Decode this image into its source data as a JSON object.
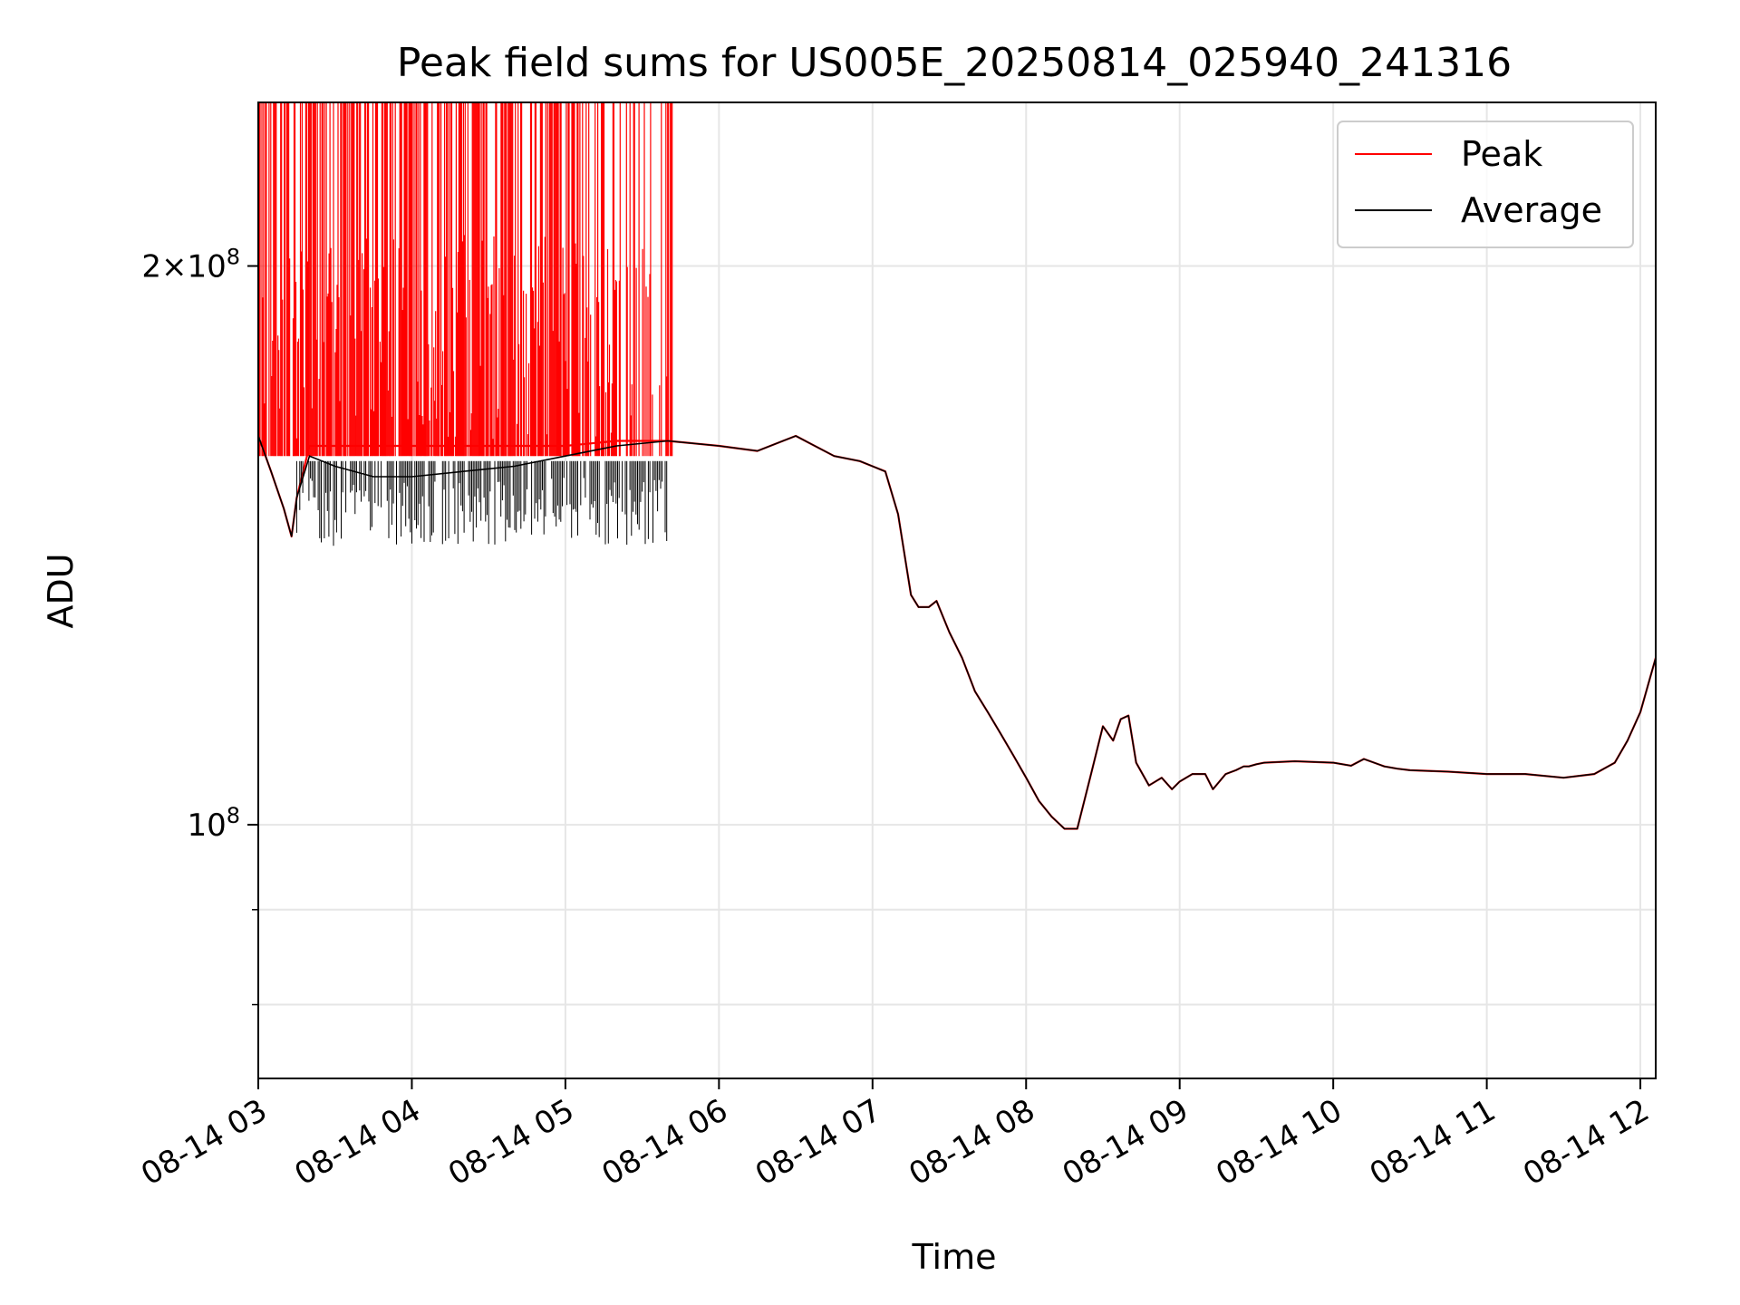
{
  "chart_data": {
    "type": "line",
    "title": "Peak field sums for US005E_20250814_025940_241316",
    "xlabel": "Time",
    "ylabel": "ADU",
    "x_scale": "time",
    "y_scale": "log",
    "xlim": [
      "2025-08-14 03:00",
      "2025-08-14 12:06"
    ],
    "ylim": [
      73000000,
      245000000
    ],
    "grid": true,
    "legend_position": "upper right",
    "x_ticks": [
      "08-14 03",
      "08-14 04",
      "08-14 05",
      "08-14 06",
      "08-14 07",
      "08-14 08",
      "08-14 09",
      "08-14 10",
      "08-14 11",
      "08-14 12"
    ],
    "y_ticks": [
      {
        "value": 200000000,
        "base": "2×10",
        "exp": "8"
      },
      {
        "value": 100000000,
        "base": "10",
        "exp": "8"
      }
    ],
    "y_minor_ticks": [
      80000000,
      90000000
    ],
    "series": [
      {
        "name": "Peak",
        "color": "#ff0000",
        "note_visible": "spiky up to top of axis between 03:00 and 05:40",
        "x": [
          "03:00",
          "03:05",
          "03:10",
          "03:13",
          "03:15",
          "03:20",
          "03:30",
          "03:45",
          "04:00",
          "04:20",
          "04:40",
          "05:00",
          "05:20",
          "05:40",
          "06:00",
          "06:15",
          "06:25",
          "06:30",
          "06:45",
          "06:55",
          "07:00",
          "07:05",
          "07:10",
          "07:15",
          "07:18",
          "07:22",
          "07:25",
          "07:30",
          "07:35",
          "07:40",
          "07:45",
          "07:50",
          "07:55",
          "08:00",
          "08:05",
          "08:10",
          "08:15",
          "08:20",
          "08:25",
          "08:30",
          "08:34",
          "08:37",
          "08:40",
          "08:43",
          "08:48",
          "08:53",
          "08:57",
          "09:00",
          "09:05",
          "09:10",
          "09:13",
          "09:18",
          "09:22",
          "09:25",
          "09:27",
          "09:30",
          "09:33",
          "09:45",
          "10:00",
          "10:07",
          "10:12",
          "10:20",
          "10:25",
          "10:30",
          "10:45",
          "11:00",
          "11:15",
          "11:30",
          "11:42",
          "11:50",
          "11:55",
          "12:00",
          "12:06"
        ],
        "y": [
          162000000,
          155000000,
          148000000,
          143000000,
          150000000,
          160000000,
          160000000,
          160000000,
          160000000,
          160000000,
          160000000,
          160000000,
          161000000,
          161000000,
          160000000,
          159000000,
          161000000,
          162000000,
          158000000,
          157000000,
          156000000,
          155000000,
          147000000,
          133000000,
          131000000,
          131000000,
          132000000,
          127000000,
          123000000,
          118000000,
          115000000,
          112000000,
          109000000,
          106000000,
          103000000,
          101000000,
          99500000,
          99500000,
          106000000,
          113000000,
          111000000,
          114000000,
          114500000,
          108000000,
          105000000,
          106000000,
          104500000,
          105500000,
          106500000,
          106500000,
          104500000,
          106500000,
          107000000,
          107500000,
          107500000,
          107800000,
          108000000,
          108200000,
          108000000,
          107600000,
          108500000,
          107500000,
          107200000,
          107000000,
          106800000,
          106500000,
          106500000,
          106000000,
          106500000,
          108000000,
          111000000,
          115000000,
          123000000
        ]
      },
      {
        "name": "Average",
        "color": "#000000",
        "x": [
          "03:00",
          "03:05",
          "03:10",
          "03:13",
          "03:15",
          "03:20",
          "03:30",
          "03:45",
          "04:00",
          "04:20",
          "04:40",
          "05:00",
          "05:20",
          "05:40",
          "06:00",
          "06:15",
          "06:25",
          "06:30",
          "06:45",
          "06:55",
          "07:00",
          "07:05",
          "07:10",
          "07:15",
          "07:18",
          "07:22",
          "07:25",
          "07:30",
          "07:35",
          "07:40",
          "07:45",
          "07:50",
          "07:55",
          "08:00",
          "08:05",
          "08:10",
          "08:15",
          "08:20",
          "08:25",
          "08:30",
          "08:34",
          "08:37",
          "08:40",
          "08:43",
          "08:48",
          "08:53",
          "08:57",
          "09:00",
          "09:05",
          "09:10",
          "09:13",
          "09:18",
          "09:22",
          "09:25",
          "09:27",
          "09:30",
          "09:33",
          "09:45",
          "10:00",
          "10:07",
          "10:12",
          "10:20",
          "10:25",
          "10:30",
          "10:45",
          "11:00",
          "11:15",
          "11:30",
          "11:42",
          "11:50",
          "11:55",
          "12:00",
          "12:06"
        ],
        "y": [
          162000000,
          155000000,
          148000000,
          143000000,
          150000000,
          158000000,
          156000000,
          154000000,
          154000000,
          155000000,
          156000000,
          158000000,
          160000000,
          161000000,
          160000000,
          159000000,
          161000000,
          162000000,
          158000000,
          157000000,
          156000000,
          155000000,
          147000000,
          133000000,
          131000000,
          131000000,
          132000000,
          127000000,
          123000000,
          118000000,
          115000000,
          112000000,
          109000000,
          106000000,
          103000000,
          101000000,
          99500000,
          99500000,
          106000000,
          113000000,
          111000000,
          114000000,
          114500000,
          108000000,
          105000000,
          106000000,
          104500000,
          105500000,
          106500000,
          106500000,
          104500000,
          106500000,
          107000000,
          107500000,
          107500000,
          107800000,
          108000000,
          108200000,
          108000000,
          107600000,
          108500000,
          107500000,
          107200000,
          107000000,
          106800000,
          106500000,
          106500000,
          106000000,
          106500000,
          108000000,
          111000000,
          115000000,
          123000000
        ]
      }
    ]
  }
}
